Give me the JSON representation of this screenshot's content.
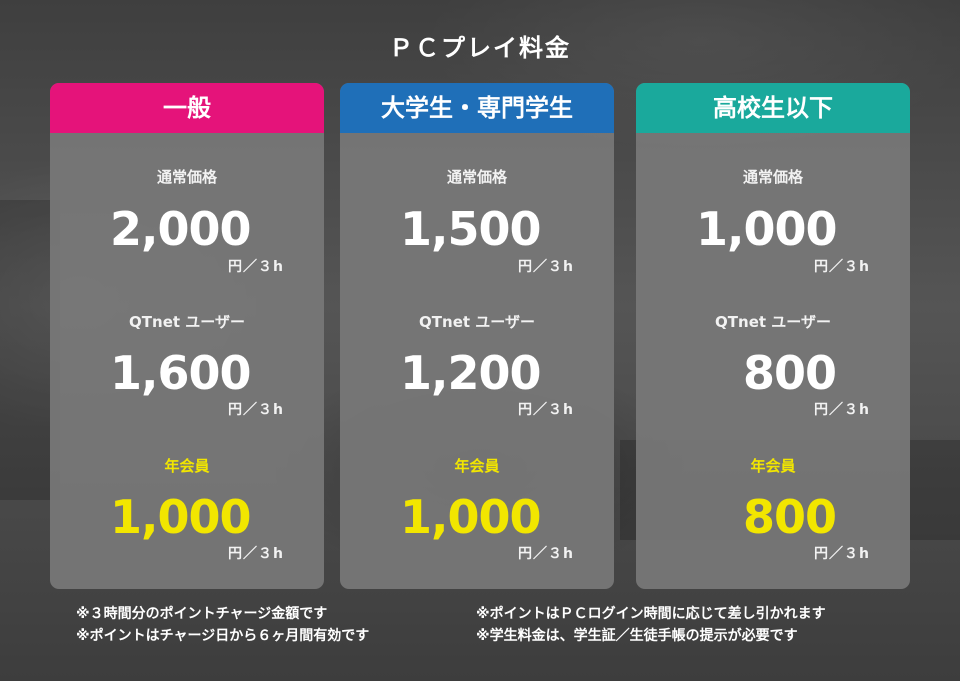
{
  "title": "ＰＣプレイ料金",
  "cards": [
    {
      "header": "一般",
      "header_color": "#e5137a",
      "regular_label": "通常価格",
      "regular_price": "2,000",
      "qtnet_label": "QTnet ユーザー",
      "qtnet_price": "1,600",
      "member_label": "年会員",
      "member_price": "1,000",
      "unit": "円／３h"
    },
    {
      "header": "大学生・専門学生",
      "header_color": "#1f6fb8",
      "regular_label": "通常価格",
      "regular_price": "1,500",
      "qtnet_label": "QTnet ユーザー",
      "qtnet_price": "1,200",
      "member_label": "年会員",
      "member_price": "1,000",
      "unit": "円／３h"
    },
    {
      "header": "高校生以下",
      "header_color": "#1aa99c",
      "regular_label": "通常価格",
      "regular_price": "1,000",
      "qtnet_label": "QTnet ユーザー",
      "qtnet_price": "800",
      "member_label": "年会員",
      "member_price": "800",
      "unit": "円／３h"
    }
  ],
  "notes_left": [
    "※３時間分のポイントチャージ金額です",
    "※ポイントはチャージ日から６ヶ月間有効です"
  ],
  "notes_right": [
    "※ポイントはＰＣログイン時間に応じて差し引かれます",
    "※学生料金は、学生証／生徒手帳の提示が必要です"
  ],
  "colors": {
    "member_accent": "#f2e600",
    "card_background": "#787878"
  }
}
